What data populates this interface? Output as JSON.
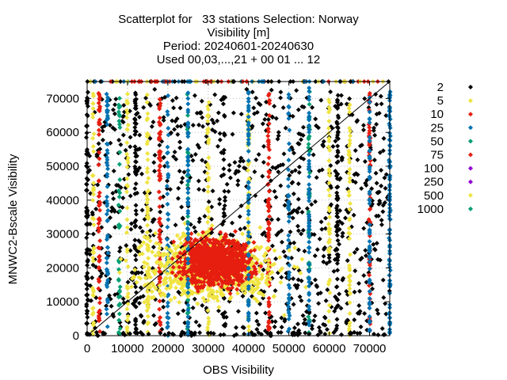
{
  "chart_data": {
    "type": "scatter",
    "title_lines": [
      "Scatterplot for   33 stations Selection: Norway",
      "Visibility [m]",
      "Period: 20240601-20240630",
      "Used 00,03,...,21 + 00 01 ... 12"
    ],
    "xlabel": "OBS Visibility",
    "ylabel": "MNWC2-Bscale Visibility",
    "xlim": [
      0,
      75000
    ],
    "ylim": [
      0,
      75000
    ],
    "x_ticks": [
      0,
      10000,
      20000,
      30000,
      40000,
      50000,
      60000,
      70000
    ],
    "y_ticks": [
      0,
      10000,
      20000,
      30000,
      40000,
      50000,
      60000,
      70000
    ],
    "x_tick_labels": [
      "0",
      "10000",
      "20000",
      "30000",
      "40000",
      "50000",
      "60000",
      "70000"
    ],
    "y_tick_labels": [
      "0",
      "10000",
      "20000",
      "30000",
      "40000",
      "50000",
      "60000",
      "70000"
    ],
    "grid": true,
    "diagonal_reference": true,
    "legend_position": "right",
    "series": [
      {
        "name": "2",
        "color": "#000000",
        "marker": "diamond"
      },
      {
        "name": "5",
        "color": "#f0e442",
        "marker": "diamond"
      },
      {
        "name": "10",
        "color": "#e51e10",
        "marker": "diamond"
      },
      {
        "name": "25",
        "color": "#0072b2",
        "marker": "diamond"
      },
      {
        "name": "50",
        "color": "#009e73",
        "marker": "diamond"
      },
      {
        "name": "75",
        "color": "#e51e10",
        "marker": "diamond"
      },
      {
        "name": "100",
        "color": "#9400d3",
        "marker": "diamond"
      },
      {
        "name": "250",
        "color": "#9400d3",
        "marker": "diamond"
      },
      {
        "name": "500",
        "color": "#f0e442",
        "marker": "diamond"
      },
      {
        "name": "1000",
        "color": "#009e73",
        "marker": "diamond"
      }
    ],
    "vertical_columns_x": [
      0,
      1500,
      3000,
      5000,
      8000,
      10000,
      12000,
      15000,
      18000,
      20000,
      25000,
      30000,
      34000,
      40000,
      45000,
      50000,
      55000,
      60000,
      62000,
      65000,
      70000,
      75000
    ]
  }
}
